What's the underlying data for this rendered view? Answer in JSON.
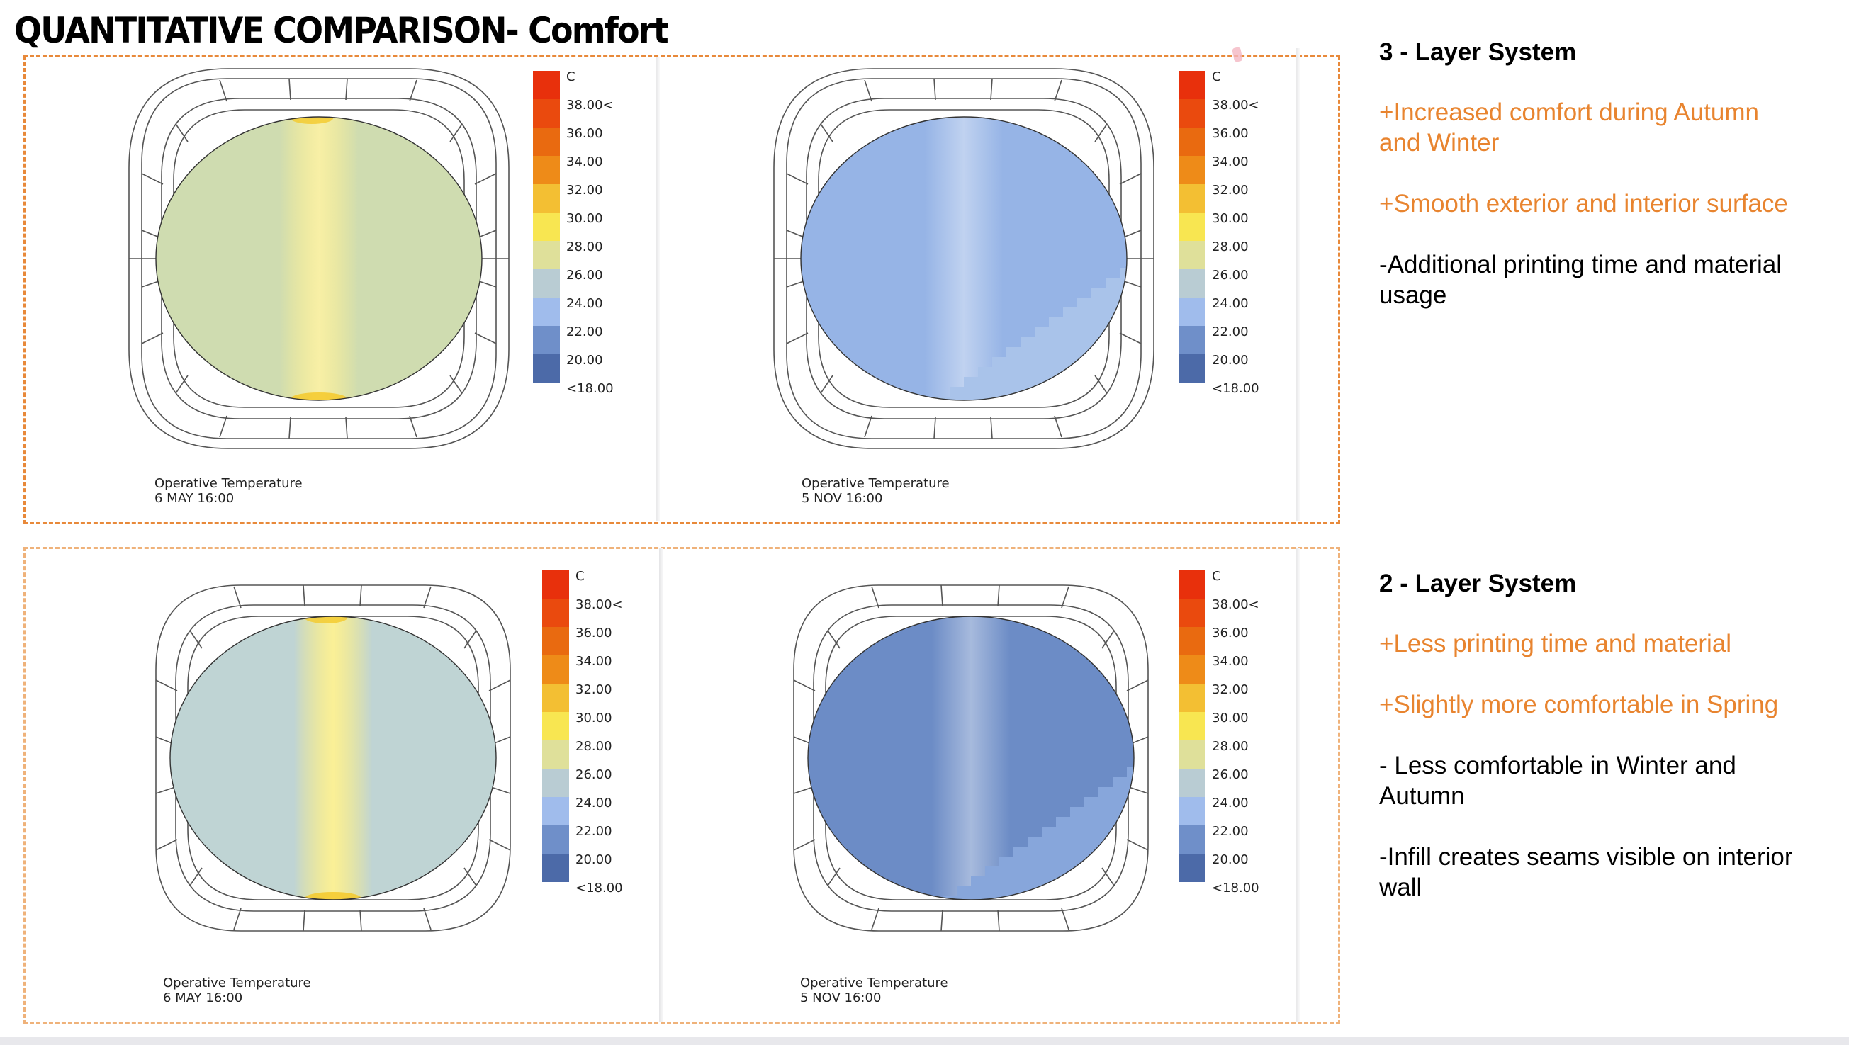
{
  "page": {
    "title": "QUANTITATIVE COMPARISON- Comfort",
    "accent_color": "#e8893a"
  },
  "legend": {
    "unit": "C",
    "labels": [
      "38.00<",
      "36.00",
      "34.00",
      "32.00",
      "30.00",
      "28.00",
      "26.00",
      "24.00",
      "22.00",
      "20.00",
      "<18.00"
    ],
    "colors": [
      "#e8300c",
      "#ea4a0e",
      "#e96a10",
      "#ee8b18",
      "#f3bf33",
      "#f8e651",
      "#dfe09a",
      "#b9ccd3",
      "#a0bcec",
      "#6f8fc9",
      "#4c6aa8"
    ]
  },
  "systems": [
    {
      "heading": "3 - Layer System",
      "points": [
        {
          "type": "pro",
          "text": "+Increased comfort during Autumn and Winter"
        },
        {
          "type": "pro",
          "text": "+Smooth exterior and interior surface"
        },
        {
          "type": "con",
          "text": "-Additional printing time and material usage"
        }
      ],
      "plots": [
        {
          "caption_title": "Operative Temperature",
          "caption_date": "6 MAY 16:00",
          "fill_color": "#cfdcb0",
          "hot_color": "#f3e56a",
          "band_color": "#cfdcb0"
        },
        {
          "caption_title": "Operative Temperature",
          "caption_date": "5 NOV 16:00",
          "fill_color": "#96b4e6",
          "hot_color": "#96b4e6",
          "band_color": "#a9c3ea"
        }
      ]
    },
    {
      "heading": "2 - Layer System",
      "points": [
        {
          "type": "pro",
          "text": "+Less printing time and material"
        },
        {
          "type": "pro",
          "text": "+Slightly more comfortable in Spring"
        },
        {
          "type": "con",
          "text": "- Less comfortable in Winter and Autumn"
        },
        {
          "type": "con",
          "text": "-Infill creates seams visible on interior wall"
        }
      ],
      "plots": [
        {
          "caption_title": "Operative Temperature",
          "caption_date": "6 MAY 16:00",
          "fill_color": "#bfd4d4",
          "hot_color": "#f8e651",
          "band_color": "#bfd4d4"
        },
        {
          "caption_title": "Operative Temperature",
          "caption_date": "5 NOV 16:00",
          "fill_color": "#6c8cc6",
          "hot_color": "#6c8cc6",
          "band_color": "#87a6db"
        }
      ]
    }
  ]
}
